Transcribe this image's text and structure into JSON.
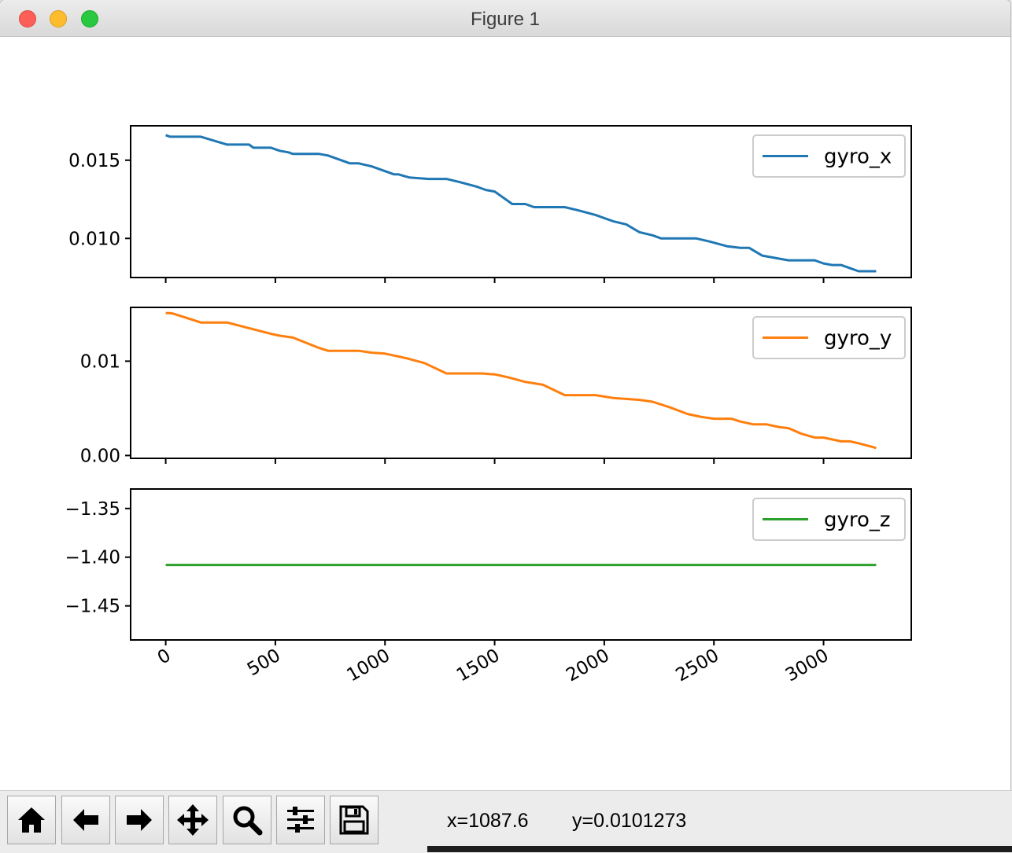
{
  "window": {
    "title": "Figure 1"
  },
  "toolbar": {
    "buttons": [
      {
        "name": "home",
        "icon": "home-icon"
      },
      {
        "name": "back",
        "icon": "arrow-left-icon"
      },
      {
        "name": "forward",
        "icon": "arrow-right-icon"
      },
      {
        "name": "pan",
        "icon": "move-icon"
      },
      {
        "name": "zoom",
        "icon": "zoom-icon"
      },
      {
        "name": "configure-subplots",
        "icon": "sliders-icon"
      },
      {
        "name": "save",
        "icon": "save-icon"
      }
    ],
    "x_readout": "x=1087.6",
    "y_readout": "y=0.0101273"
  },
  "colors": {
    "gyro_x": "#1f77b4",
    "gyro_y": "#ff7f0e",
    "gyro_z": "#2ca02c"
  },
  "chart_data": [
    {
      "type": "line",
      "legend": "top-right",
      "ylim": [
        0.0075,
        0.0172
      ],
      "yticks": [
        0.01,
        0.015
      ],
      "ytick_labels": [
        "0.010",
        "0.015"
      ],
      "xlim": [
        -160,
        3400
      ],
      "xticks": [
        0,
        500,
        1000,
        1500,
        2000,
        2500,
        3000
      ],
      "series": [
        {
          "name": "gyro_x",
          "x": [
            0,
            20,
            40,
            160,
            280,
            380,
            400,
            480,
            520,
            560,
            580,
            700,
            740,
            840,
            880,
            940,
            1040,
            1060,
            1110,
            1200,
            1280,
            1340,
            1420,
            1460,
            1500,
            1540,
            1580,
            1620,
            1640,
            1680,
            1820,
            1880,
            1960,
            2000,
            2040,
            2100,
            2160,
            2220,
            2260,
            2320,
            2420,
            2480,
            2560,
            2620,
            2660,
            2720,
            2760,
            2800,
            2840,
            2900,
            2960,
            3000,
            3040,
            3080,
            3120,
            3160,
            3240
          ],
          "values": [
            0.0166,
            0.0165,
            0.0165,
            0.0165,
            0.016,
            0.016,
            0.0158,
            0.0158,
            0.0156,
            0.0155,
            0.0154,
            0.0154,
            0.0153,
            0.0148,
            0.0148,
            0.0146,
            0.0141,
            0.0141,
            0.0139,
            0.0138,
            0.0138,
            0.0136,
            0.0133,
            0.0131,
            0.013,
            0.0126,
            0.0122,
            0.0122,
            0.0122,
            0.012,
            0.012,
            0.0118,
            0.0115,
            0.0113,
            0.0111,
            0.0109,
            0.0104,
            0.0102,
            0.01,
            0.01,
            0.01,
            0.0098,
            0.0095,
            0.0094,
            0.0094,
            0.0089,
            0.0088,
            0.0087,
            0.0086,
            0.0086,
            0.0086,
            0.0084,
            0.0083,
            0.0083,
            0.0081,
            0.0079,
            0.0079
          ]
        }
      ]
    },
    {
      "type": "line",
      "legend": "top-right",
      "ylim": [
        -0.0003,
        0.0157
      ],
      "yticks": [
        0.0,
        0.01
      ],
      "ytick_labels": [
        "0.00",
        "0.01"
      ],
      "xlim": [
        -160,
        3400
      ],
      "xticks": [
        0,
        500,
        1000,
        1500,
        2000,
        2500,
        3000
      ],
      "series": [
        {
          "name": "gyro_y",
          "x": [
            0,
            20,
            40,
            160,
            280,
            380,
            480,
            520,
            580,
            700,
            740,
            880,
            940,
            1000,
            1040,
            1100,
            1180,
            1280,
            1440,
            1500,
            1560,
            1640,
            1720,
            1820,
            1900,
            1960,
            2040,
            2160,
            2220,
            2300,
            2380,
            2440,
            2500,
            2580,
            2620,
            2680,
            2740,
            2800,
            2840,
            2900,
            2960,
            3000,
            3040,
            3080,
            3120,
            3160,
            3240
          ],
          "values": [
            0.0151,
            0.0151,
            0.015,
            0.0141,
            0.0141,
            0.0135,
            0.0129,
            0.0127,
            0.0125,
            0.0114,
            0.0111,
            0.0111,
            0.0109,
            0.0108,
            0.0106,
            0.0103,
            0.0098,
            0.0087,
            0.0087,
            0.0086,
            0.0083,
            0.0078,
            0.0075,
            0.0064,
            0.0064,
            0.0064,
            0.0061,
            0.0059,
            0.0057,
            0.0051,
            0.0044,
            0.0041,
            0.0039,
            0.0039,
            0.0036,
            0.0033,
            0.0033,
            0.003,
            0.0029,
            0.0023,
            0.0019,
            0.0019,
            0.0017,
            0.0015,
            0.0015,
            0.0013,
            0.0008
          ]
        }
      ]
    },
    {
      "type": "line",
      "legend": "top-right",
      "ylim": [
        -1.485,
        -1.33
      ],
      "yticks": [
        -1.45,
        -1.4,
        -1.35
      ],
      "ytick_labels": [
        "−1.45",
        "−1.40",
        "−1.35"
      ],
      "xlim": [
        -160,
        3400
      ],
      "xticks": [
        0,
        500,
        1000,
        1500,
        2000,
        2500,
        3000
      ],
      "xtick_labels": [
        "0",
        "500",
        "1000",
        "1500",
        "2000",
        "2500",
        "3000"
      ],
      "series": [
        {
          "name": "gyro_z",
          "x": [
            0,
            3240
          ],
          "values": [
            -1.408,
            -1.408
          ]
        }
      ]
    }
  ]
}
